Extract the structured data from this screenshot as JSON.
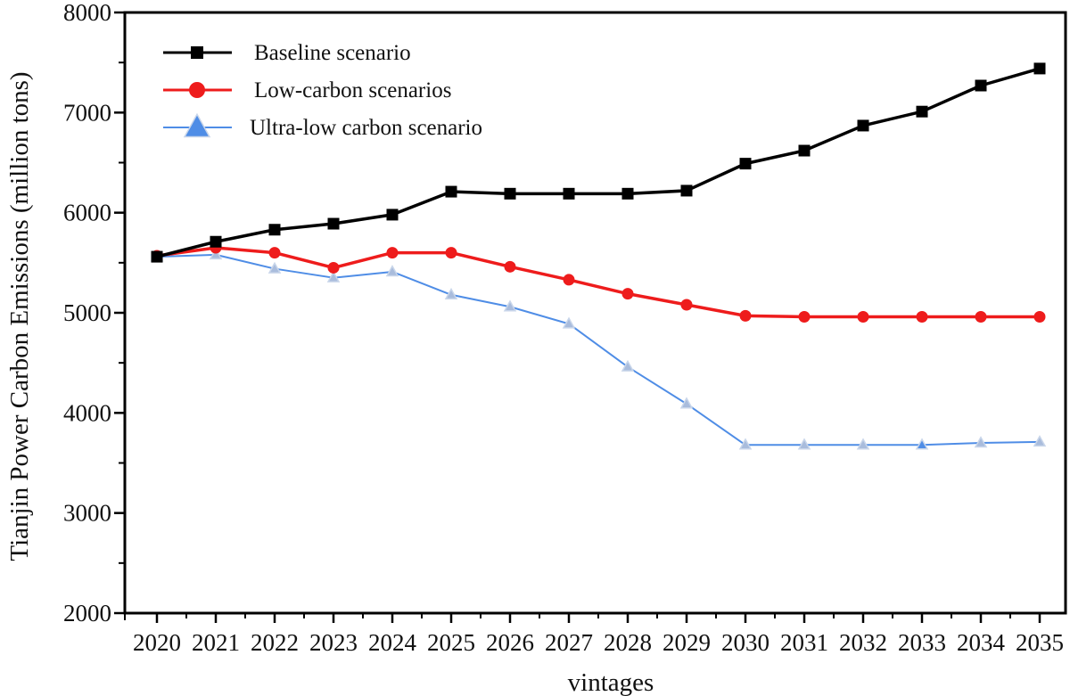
{
  "chart_data": {
    "type": "line",
    "title": "",
    "xlabel": "vintages",
    "ylabel": "Tianjin Power Carbon Emissions (million tons)",
    "ylim": [
      2000,
      8000
    ],
    "yticks": [
      2000,
      3000,
      4000,
      5000,
      6000,
      7000,
      8000
    ],
    "y_tick_labels": [
      "2000",
      "3000",
      "4000",
      "5000",
      "6000",
      "7000",
      "8000"
    ],
    "grid": false,
    "legend_position": "top-left",
    "categories": [
      "2020",
      "2021",
      "2022",
      "2023",
      "2024",
      "2025",
      "2026",
      "2027",
      "2028",
      "2029",
      "2030",
      "2031",
      "2032",
      "2033",
      "2034",
      "2035"
    ],
    "series": [
      {
        "name": "Baseline scenario",
        "color": "#000000",
        "marker": "square",
        "values": [
          5560,
          5710,
          5830,
          5890,
          5980,
          6210,
          6190,
          6190,
          6190,
          6220,
          6490,
          6620,
          6870,
          7010,
          7270,
          7440
        ]
      },
      {
        "name": "Low-carbon scenarios",
        "color": "#ee1c1c",
        "marker": "circle",
        "values": [
          5570,
          5650,
          5600,
          5450,
          5600,
          5600,
          5460,
          5330,
          5190,
          5080,
          4970,
          4960,
          4960,
          4960,
          4960,
          4960
        ]
      },
      {
        "name": "Ultra-low carbon scenario",
        "color": "#4f8de6",
        "marker": "triangle",
        "values": [
          5560,
          5580,
          5440,
          5350,
          5410,
          5180,
          5060,
          4890,
          4460,
          4090,
          3680,
          3680,
          3680,
          3680,
          3700,
          3710
        ]
      }
    ]
  }
}
